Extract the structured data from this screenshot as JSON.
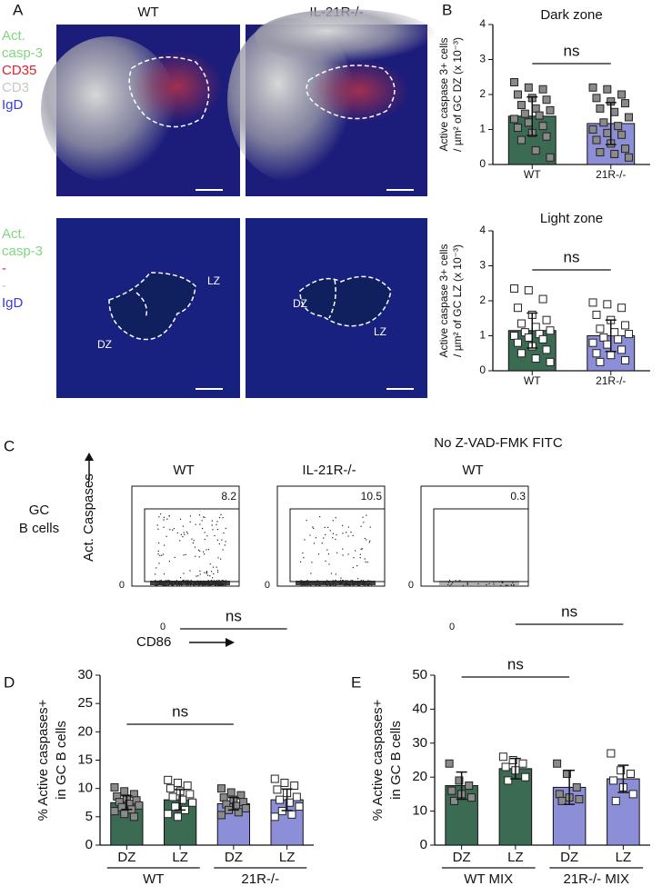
{
  "panels": {
    "a": "A",
    "b": "B",
    "c": "C",
    "d": "D",
    "e": "E"
  },
  "image_panel": {
    "columns": [
      "WT",
      "IL-21R-/-"
    ],
    "legend_top": [
      {
        "text": "Act.",
        "color": "#7fd67f"
      },
      {
        "text": "casp-3",
        "color": "#7fd67f"
      },
      {
        "text": "CD35",
        "color": "#e0202a"
      },
      {
        "text": "CD3",
        "color": "#c8c8c8"
      },
      {
        "text": "IgD",
        "color": "#3a3ae0"
      }
    ],
    "legend_bottom": [
      {
        "text": "Act.",
        "color": "#7fd67f"
      },
      {
        "text": "casp-3",
        "color": "#7fd67f"
      },
      {
        "text": "-",
        "color": "#e0202a"
      },
      {
        "text": "-",
        "color": "#c8c8c8"
      },
      {
        "text": "IgD",
        "color": "#3a3ae0"
      }
    ],
    "zone_labels": {
      "wt_lz": "LZ",
      "wt_dz": "DZ",
      "ko_dz": "DZ",
      "ko_lz": "LZ"
    }
  },
  "flow_panel": {
    "row_label": [
      "GC",
      "B cells"
    ],
    "columns": [
      "WT",
      "IL-21R-/-",
      "WT"
    ],
    "column_note": "No Z-VAD-FMK FITC",
    "gate_values": [
      8.2,
      10.5,
      0.3
    ],
    "y_axis_label": "Act. Caspases",
    "x_axis_label": "CD86",
    "zero_label": "0"
  },
  "chart_data": [
    {
      "type": "bar",
      "title": "Dark zone",
      "ylabel": [
        "Active caspase 3+ cells",
        "/ µm² of GC DZ (x 10⁻³)"
      ],
      "categories": [
        "WT",
        "21R-/-"
      ],
      "values": [
        1.38,
        1.17
      ],
      "errors": [
        0.55,
        0.6
      ],
      "colors": [
        "#3b6b52",
        "#8c8fd8"
      ],
      "markers": [
        "filled",
        "filled"
      ],
      "points": [
        [
          2.35,
          2.2,
          2.15,
          2.0,
          1.9,
          1.85,
          1.7,
          1.6,
          1.55,
          1.45,
          1.4,
          1.3,
          1.2,
          1.1,
          1.05,
          0.9,
          0.8,
          0.7,
          0.4,
          0.2
        ],
        [
          2.2,
          2.15,
          2.0,
          1.9,
          1.8,
          1.75,
          1.6,
          1.5,
          1.35,
          1.2,
          1.1,
          1.0,
          0.9,
          0.85,
          0.7,
          0.6,
          0.45,
          0.35,
          0.3,
          0.2
        ]
      ],
      "annotations": [
        "ns"
      ],
      "ylim": [
        0,
        4
      ],
      "yticks": [
        0,
        1,
        2,
        3,
        4
      ]
    },
    {
      "type": "bar",
      "title": "Light zone",
      "ylabel": [
        "Active caspase 3+ cells",
        "/ µm² of GC LZ (x 10⁻³)"
      ],
      "categories": [
        "WT",
        "21R-/-"
      ],
      "values": [
        1.15,
        1.0
      ],
      "errors": [
        0.5,
        0.45
      ],
      "colors": [
        "#3b6b52",
        "#8c8fd8"
      ],
      "markers": [
        "open",
        "open"
      ],
      "points": [
        [
          2.35,
          2.3,
          2.05,
          1.8,
          1.6,
          1.45,
          1.35,
          1.25,
          1.15,
          1.1,
          1.05,
          1.0,
          0.95,
          0.9,
          0.8,
          0.7,
          0.6,
          0.5,
          0.35,
          0.25
        ],
        [
          1.95,
          1.9,
          1.8,
          1.6,
          1.45,
          1.3,
          1.2,
          1.1,
          1.05,
          0.95,
          0.9,
          0.8,
          0.75,
          0.6,
          0.5,
          0.45,
          0.3,
          0.25
        ]
      ],
      "annotations": [
        "ns"
      ],
      "ylim": [
        0,
        4
      ],
      "yticks": [
        0,
        1,
        2,
        3,
        4
      ]
    },
    {
      "type": "bar",
      "ylabel": [
        "% Active caspases+",
        "in GC B cells"
      ],
      "categories": [
        "DZ",
        "LZ",
        "DZ",
        "LZ"
      ],
      "group_labels": [
        "WT",
        "21R-/-"
      ],
      "values": [
        7.5,
        8.0,
        7.3,
        8.0
      ],
      "errors": [
        1.2,
        1.8,
        1.1,
        1.9
      ],
      "colors": [
        "#3b6b52",
        "#3b6b52",
        "#8c8fd8",
        "#8c8fd8"
      ],
      "markers": [
        "filled",
        "open",
        "filled",
        "open"
      ],
      "points": [
        [
          10.2,
          9.5,
          9.0,
          8.6,
          8.2,
          7.9,
          7.6,
          7.3,
          7.0,
          6.7,
          6.3,
          6.0,
          5.5,
          5.0
        ],
        [
          11.5,
          11.0,
          10.5,
          10.0,
          9.5,
          9.0,
          8.5,
          8.0,
          7.5,
          6.8,
          6.2,
          5.5,
          5.0
        ],
        [
          10.0,
          9.3,
          8.8,
          8.4,
          8.0,
          7.6,
          7.2,
          6.9,
          6.5,
          6.2,
          5.8,
          5.3
        ],
        [
          11.7,
          11.0,
          10.5,
          9.8,
          9.2,
          8.5,
          8.0,
          7.5,
          6.8,
          6.0,
          5.4,
          5.0
        ]
      ],
      "annotations": [
        "ns",
        "ns"
      ],
      "ylim": [
        0,
        30
      ],
      "yticks": [
        0,
        5,
        10,
        15,
        20,
        25,
        30
      ]
    },
    {
      "type": "bar",
      "ylabel": [
        "% Active caspases+",
        "in GC B cells"
      ],
      "categories": [
        "DZ",
        "LZ",
        "DZ",
        "LZ"
      ],
      "group_labels": [
        "WT MIX",
        "21R-/- MIX"
      ],
      "values": [
        17.5,
        22.5,
        17.0,
        19.5
      ],
      "errors": [
        4.0,
        3.0,
        5.0,
        4.0
      ],
      "colors": [
        "#3b6b52",
        "#3b6b52",
        "#8c8fd8",
        "#8c8fd8"
      ],
      "markers": [
        "filled",
        "open",
        "filled",
        "open"
      ],
      "points": [
        [
          24,
          19,
          17.5,
          16,
          15,
          14,
          13
        ],
        [
          26,
          25,
          24,
          23,
          22,
          20,
          19
        ],
        [
          24,
          21,
          17,
          15,
          14,
          13.5,
          13
        ],
        [
          27,
          22,
          21,
          19,
          17,
          15,
          13
        ]
      ],
      "annotations": [
        "ns",
        "ns"
      ],
      "ylim": [
        0,
        50
      ],
      "yticks": [
        0,
        10,
        20,
        30,
        40,
        50
      ]
    }
  ]
}
